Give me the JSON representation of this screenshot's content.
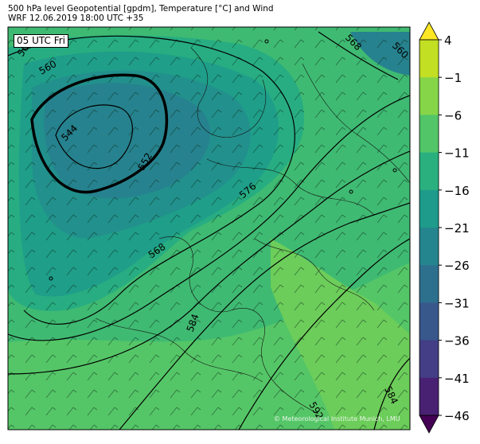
{
  "header": {
    "line1": "500 hPa level Geopotential [gpdm], Temperature [°C] and Wind",
    "line2": "WRF 12.06.2019 18:00 UTC +35"
  },
  "map": {
    "time_badge": "05 UTC Fri",
    "credit": "© Meteorological Institute Munich, LMU",
    "contour_labels": [
      "568",
      "560",
      "544",
      "552",
      "576",
      "568",
      "584",
      "592",
      "584",
      "568",
      "560"
    ]
  },
  "colorbar": {
    "ticks": [
      "4",
      "−1",
      "−6",
      "−11",
      "−16",
      "−21",
      "−26",
      "−31",
      "−36",
      "−41",
      "−46"
    ],
    "colors": [
      "#fde725",
      "#c2df23",
      "#86d549",
      "#52c569",
      "#2ab07f",
      "#1e9b8a",
      "#25858e",
      "#2d708e",
      "#38588c",
      "#433e85",
      "#482173",
      "#440154"
    ]
  }
}
